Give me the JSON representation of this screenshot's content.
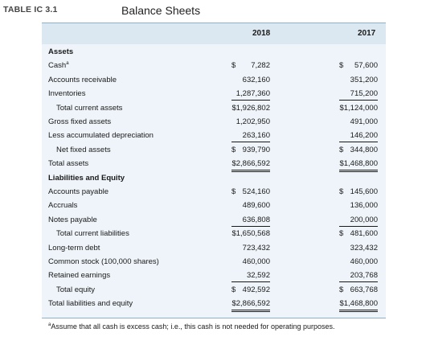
{
  "table_label": "TABLE IC 3.1",
  "title": "Balance Sheets",
  "columns": [
    "2018",
    "2017"
  ],
  "rows": [
    {
      "label": "Assets",
      "style": "section"
    },
    {
      "label": "Cash",
      "note_mark": "a",
      "v2018": "7,282",
      "cur2018": "$",
      "v2017": "57,600",
      "cur2017": "$"
    },
    {
      "label": "Accounts receivable",
      "v2018": "632,160",
      "v2017": "351,200"
    },
    {
      "label": "Inventories",
      "v2018": "1,287,360",
      "v2017": "715,200",
      "underline": "single"
    },
    {
      "label": "Total current assets",
      "indent": true,
      "v2018": "$1,926,802",
      "v2017": "$1,124,000"
    },
    {
      "label": "Gross fixed assets",
      "v2018": "1,202,950",
      "v2017": "491,000"
    },
    {
      "label": "Less accumulated depreciation",
      "v2018": "263,160",
      "v2017": "146,200",
      "underline": "single"
    },
    {
      "label": "Net fixed assets",
      "indent": true,
      "v2018": "939,790",
      "cur2018": "$",
      "v2017": "344,800",
      "cur2017": "$"
    },
    {
      "label": "Total assets",
      "v2018": "$2,866,592",
      "v2017": "$1,468,800",
      "underline": "double"
    },
    {
      "label": "Liabilities and Equity",
      "style": "section"
    },
    {
      "label": "Accounts payable",
      "v2018": "524,160",
      "cur2018": "$",
      "v2017": "145,600",
      "cur2017": "$"
    },
    {
      "label": "Accruals",
      "v2018": "489,600",
      "v2017": "136,000"
    },
    {
      "label": "Notes payable",
      "v2018": "636,808",
      "v2017": "200,000",
      "underline": "single"
    },
    {
      "label": "Total current liabilities",
      "indent": true,
      "v2018": "$1,650,568",
      "v2017": "481,600",
      "cur2017": "$"
    },
    {
      "label": "Long-term debt",
      "v2018": "723,432",
      "v2017": "323,432"
    },
    {
      "label": "Common stock (100,000 shares)",
      "v2018": "460,000",
      "v2017": "460,000"
    },
    {
      "label": "Retained earnings",
      "v2018": "32,592",
      "v2017": "203,768",
      "underline": "single"
    },
    {
      "label": "Total equity",
      "indent": true,
      "v2018": "492,592",
      "cur2018": "$",
      "v2017": "663,768",
      "cur2017": "$"
    },
    {
      "label": "Total liabilities and equity",
      "v2018": "$2,866,592",
      "v2017": "$1,468,800",
      "underline": "double"
    }
  ],
  "footnote": {
    "mark": "a",
    "text": "Assume that all cash is excess cash; i.e., this cash is not needed for operating purposes."
  }
}
